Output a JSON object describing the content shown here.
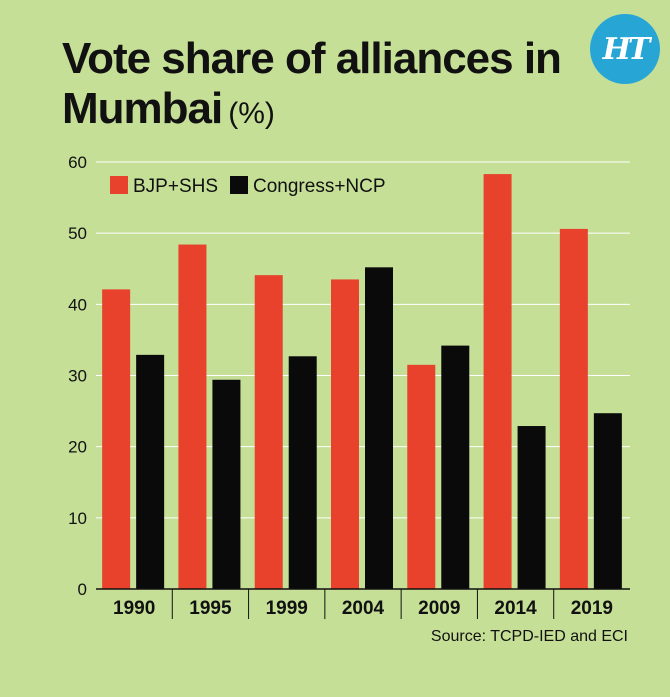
{
  "header": {
    "title": "Vote share of alliances in Mumbai",
    "unit": "(%)",
    "logo": "HT"
  },
  "footer": {
    "source": "Source: TCPD-IED and ECI"
  },
  "chart_data": {
    "type": "bar",
    "categories": [
      "1990",
      "1995",
      "1999",
      "2004",
      "2009",
      "2014",
      "2019"
    ],
    "series": [
      {
        "name": "BJP+SHS",
        "values": [
          42.1,
          48.4,
          44.1,
          43.5,
          31.5,
          58.3,
          50.6
        ],
        "color": "#e8412c"
      },
      {
        "name": "Congress+NCP",
        "values": [
          32.9,
          29.4,
          32.7,
          45.2,
          34.2,
          22.9,
          24.7
        ],
        "color": "#0a0a0a"
      }
    ],
    "ylim": [
      0,
      60
    ],
    "yticks": [
      "0",
      "10",
      "20",
      "30",
      "40",
      "50",
      "60"
    ],
    "grid": true,
    "legend": "top-left",
    "xlabel": "",
    "ylabel": ""
  }
}
